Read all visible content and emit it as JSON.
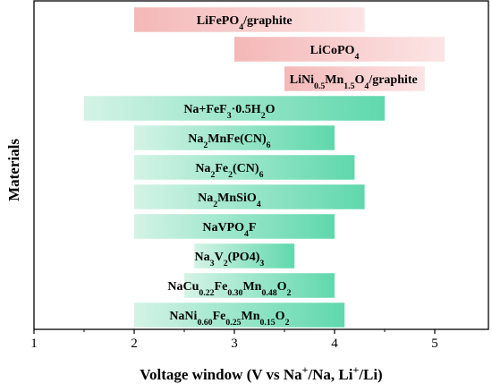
{
  "chart_data": {
    "type": "bar",
    "orientation": "horizontal-range",
    "xlabel_parts": [
      {
        "t": "Voltage window (V vs Na"
      },
      {
        "t": "+",
        "sup": true
      },
      {
        "t": "/Na, Li"
      },
      {
        "t": "+",
        "sup": true
      },
      {
        "t": "/Li)"
      }
    ],
    "ylabel": "Materials",
    "xlim": [
      1,
      5.5
    ],
    "xticks": [
      "1",
      "2",
      "3",
      "4",
      "5"
    ],
    "grid": false,
    "colors": {
      "li_start": "#f4b8b8",
      "li_end": "#fce4e4",
      "na_start": "#d4f3e7",
      "na_end": "#5fd8ac"
    },
    "bars": [
      {
        "label_parts": [
          {
            "t": "LiFePO"
          },
          {
            "t": "4",
            "sub": true
          },
          {
            "t": "/graphite"
          }
        ],
        "start": 2.0,
        "end": 4.3,
        "family": "li",
        "label_x": 3.1
      },
      {
        "label_parts": [
          {
            "t": "LiCoPO"
          },
          {
            "t": "4",
            "sub": true
          }
        ],
        "start": 3.0,
        "end": 5.1,
        "family": "li",
        "label_x": 4.0
      },
      {
        "label_parts": [
          {
            "t": "LiNi"
          },
          {
            "t": "0.5",
            "sub": true
          },
          {
            "t": "Mn"
          },
          {
            "t": "1.5",
            "sub": true
          },
          {
            "t": "O"
          },
          {
            "t": "4",
            "sub": true
          },
          {
            "t": "/graphite"
          }
        ],
        "start": 3.5,
        "end": 4.9,
        "family": "li",
        "label_x": 4.19
      },
      {
        "label_parts": [
          {
            "t": "Na+FeF"
          },
          {
            "t": "3",
            "sub": true
          },
          {
            "t": "·0.5H"
          },
          {
            "t": "2",
            "sub": true
          },
          {
            "t": "O"
          }
        ],
        "start": 1.5,
        "end": 4.5,
        "family": "na",
        "label_x": 2.95
      },
      {
        "label_parts": [
          {
            "t": "Na"
          },
          {
            "t": "2",
            "sub": true
          },
          {
            "t": "MnFe(CN)"
          },
          {
            "t": "6",
            "sub": true
          }
        ],
        "start": 2.0,
        "end": 4.0,
        "family": "na",
        "label_x": 2.95
      },
      {
        "label_parts": [
          {
            "t": "Na"
          },
          {
            "t": "2",
            "sub": true
          },
          {
            "t": "Fe"
          },
          {
            "t": "2",
            "sub": true
          },
          {
            "t": "(CN)"
          },
          {
            "t": "6",
            "sub": true
          }
        ],
        "start": 2.0,
        "end": 4.2,
        "family": "na",
        "label_x": 2.95
      },
      {
        "label_parts": [
          {
            "t": "Na"
          },
          {
            "t": "2",
            "sub": true
          },
          {
            "t": "MnSiO"
          },
          {
            "t": "4",
            "sub": true
          }
        ],
        "start": 2.0,
        "end": 4.3,
        "family": "na",
        "label_x": 2.95
      },
      {
        "label_parts": [
          {
            "t": "NaVPO"
          },
          {
            "t": "4",
            "sub": true
          },
          {
            "t": "F"
          }
        ],
        "start": 2.0,
        "end": 4.0,
        "family": "na",
        "label_x": 2.95
      },
      {
        "label_parts": [
          {
            "t": "Na"
          },
          {
            "t": "3",
            "sub": true
          },
          {
            "t": "V"
          },
          {
            "t": "2",
            "sub": true
          },
          {
            "t": "(PO4)"
          },
          {
            "t": "3",
            "sub": true
          }
        ],
        "start": 2.6,
        "end": 3.6,
        "family": "na",
        "label_x": 2.95
      },
      {
        "label_parts": [
          {
            "t": "NaCu"
          },
          {
            "t": "0.22",
            "sub": true
          },
          {
            "t": "Fe"
          },
          {
            "t": "0.30",
            "sub": true
          },
          {
            "t": "Mn"
          },
          {
            "t": "0.48",
            "sub": true
          },
          {
            "t": "O"
          },
          {
            "t": "2",
            "sub": true
          }
        ],
        "start": 2.5,
        "end": 4.0,
        "family": "na",
        "label_x": 2.95
      },
      {
        "label_parts": [
          {
            "t": "NaNi"
          },
          {
            "t": "0.60",
            "sub": true
          },
          {
            "t": "Fe"
          },
          {
            "t": "0.25",
            "sub": true
          },
          {
            "t": "Mn"
          },
          {
            "t": "0.15",
            "sub": true
          },
          {
            "t": "O"
          },
          {
            "t": "2",
            "sub": true
          }
        ],
        "start": 2.0,
        "end": 4.1,
        "family": "na",
        "label_x": 2.95
      }
    ]
  }
}
